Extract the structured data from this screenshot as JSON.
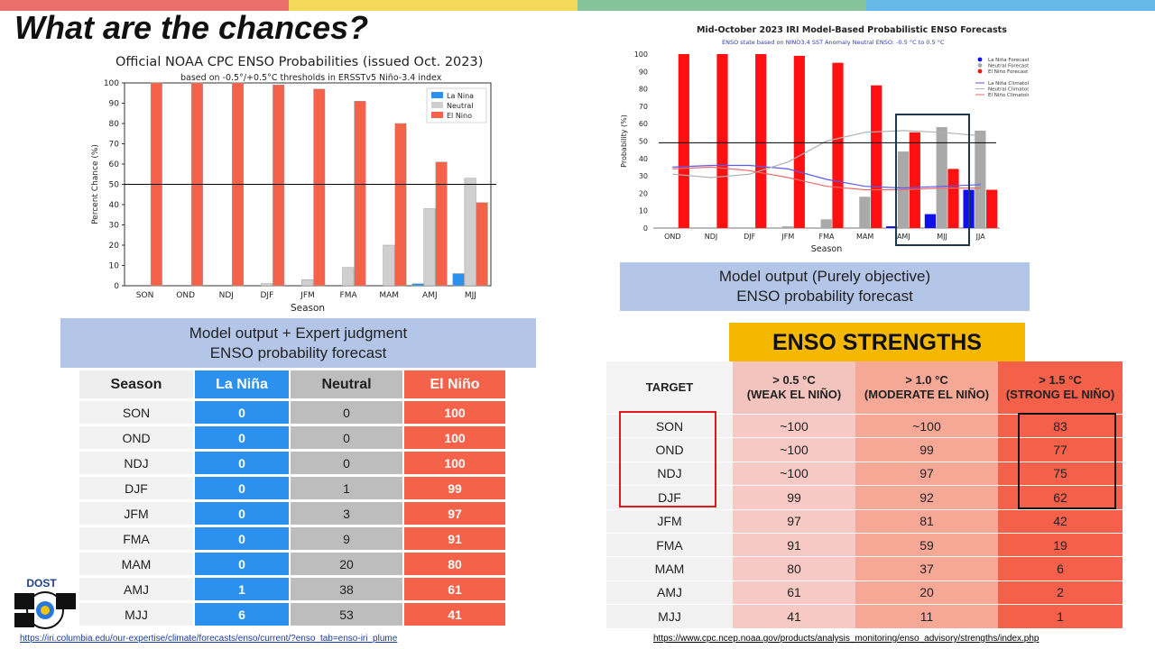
{
  "slide": {
    "title": "What are the chances?",
    "strip_colors": [
      "#ea6f6a",
      "#f4d85a",
      "#86c29b",
      "#66b8e8"
    ]
  },
  "cpc_chart": {
    "title": "Official NOAA CPC ENSO Probabilities (issued Oct. 2023)",
    "subtitle": "based on -0.5°/+0.5°C thresholds in ERSSTv5 Niño-3.4 index",
    "box_caption": [
      "Model output + Expert judgment",
      "ENSO probability forecast"
    ]
  },
  "iri_chart": {
    "title": "Mid-October 2023 IRI Model-Based Probabilistic ENSO Forecasts",
    "subtitle": "ENSO state based on NINO3.4 SST Anomaly Neutral ENSO: -0.5 °C to 0.5 °C",
    "legend": [
      "La Niña Forecast Probability",
      "Neutral Forecast Probability",
      "El Niño Forecast Probability",
      "",
      "La Niña Climatology",
      "Neutral Climatology",
      "El Niño Climatology"
    ],
    "box_caption": [
      "Model output (Purely objective)",
      "ENSO probability forecast"
    ]
  },
  "chart_data": [
    {
      "type": "bar",
      "title": "Official NOAA CPC ENSO Probabilities (issued Oct. 2023)",
      "subtitle": "based on -0.5°/+0.5°C thresholds in ERSSTv5 Niño-3.4 index",
      "xlabel": "Season",
      "ylabel": "Percent Chance (%)",
      "ylim": [
        0,
        100
      ],
      "yticks": [
        0,
        10,
        20,
        30,
        40,
        50,
        60,
        70,
        80,
        90,
        100
      ],
      "grid": false,
      "reference_line": 50,
      "legend_position": "top-right",
      "categories": [
        "SON",
        "OND",
        "NDJ",
        "DJF",
        "JFM",
        "FMA",
        "MAM",
        "AMJ",
        "MJJ"
      ],
      "series": [
        {
          "name": "La Nina",
          "color": "#2b90ee",
          "values": [
            0,
            0,
            0,
            0,
            0,
            0,
            0,
            1,
            6
          ]
        },
        {
          "name": "Neutral",
          "color": "#cfcfcf",
          "values": [
            0,
            0,
            0,
            1,
            3,
            9,
            20,
            38,
            53
          ]
        },
        {
          "name": "El Nino",
          "color": "#f4624a",
          "values": [
            100,
            100,
            100,
            99,
            97,
            91,
            80,
            61,
            41
          ]
        }
      ]
    },
    {
      "type": "bar",
      "title": "Mid-October 2023 IRI Model-Based Probabilistic ENSO Forecasts",
      "subtitle": "ENSO state based on NINO3.4 SST Anomaly Neutral ENSO: -0.5 °C to 0.5 °C",
      "xlabel": "Season",
      "ylabel": "Probability (%)",
      "ylim": [
        0,
        100
      ],
      "yticks": [
        0,
        10,
        20,
        30,
        40,
        50,
        60,
        70,
        80,
        90,
        100
      ],
      "grid": false,
      "reference_line": 49,
      "legend_position": "top-right",
      "categories": [
        "OND",
        "NDJ",
        "DJF",
        "JFM",
        "FMA",
        "MAM",
        "AMJ",
        "MJJ",
        "JJA"
      ],
      "series": [
        {
          "name": "La Niña Forecast Probability",
          "color": "#1010ee",
          "values": [
            0,
            0,
            0,
            0,
            0,
            0,
            1,
            8,
            22
          ]
        },
        {
          "name": "Neutral Forecast Probability",
          "color": "#a9a9a9",
          "values": [
            0,
            0,
            0,
            1,
            5,
            18,
            44,
            58,
            56
          ]
        },
        {
          "name": "El Niño Forecast Probability",
          "color": "#ff1111",
          "values": [
            100,
            100,
            100,
            99,
            95,
            82,
            55,
            34,
            22
          ]
        }
      ],
      "lines": [
        {
          "name": "La Niña Climatology",
          "color": "#5a5aee",
          "values": [
            35,
            36,
            36,
            34,
            28,
            24,
            23,
            24,
            25
          ]
        },
        {
          "name": "Neutral Climatology",
          "color": "#b0b0b0",
          "values": [
            31,
            29,
            31,
            38,
            50,
            55,
            56,
            55,
            53
          ]
        },
        {
          "name": "El Niño Climatology",
          "color": "#ee6a6a",
          "values": [
            34,
            35,
            33,
            29,
            24,
            22,
            22,
            23,
            23
          ]
        }
      ]
    }
  ],
  "prob_table": {
    "headers": [
      "Season",
      "La Niña",
      "Neutral",
      "El Niño"
    ],
    "rows": [
      [
        "SON",
        "0",
        "0",
        "100"
      ],
      [
        "OND",
        "0",
        "0",
        "100"
      ],
      [
        "NDJ",
        "0",
        "0",
        "100"
      ],
      [
        "DJF",
        "0",
        "1",
        "99"
      ],
      [
        "JFM",
        "0",
        "3",
        "97"
      ],
      [
        "FMA",
        "0",
        "9",
        "91"
      ],
      [
        "MAM",
        "0",
        "20",
        "80"
      ],
      [
        "AMJ",
        "1",
        "38",
        "61"
      ],
      [
        "MJJ",
        "6",
        "53",
        "41"
      ]
    ]
  },
  "strengths": {
    "banner": "ENSO STRENGTHS",
    "headers": [
      {
        "line1": "TARGET",
        "line2": ""
      },
      {
        "line1": "> 0.5 °C",
        "line2": "(WEAK EL NIÑO)"
      },
      {
        "line1": "> 1.0 °C",
        "line2": "(MODERATE EL NIÑO)"
      },
      {
        "line1": "> 1.5 °C",
        "line2": "(STRONG EL NIÑO)"
      }
    ],
    "rows": [
      [
        "SON",
        "~100",
        "~100",
        "83"
      ],
      [
        "OND",
        "~100",
        "99",
        "77"
      ],
      [
        "NDJ",
        "~100",
        "97",
        "75"
      ],
      [
        "DJF",
        "99",
        "92",
        "62"
      ],
      [
        "JFM",
        "97",
        "81",
        "42"
      ],
      [
        "FMA",
        "91",
        "59",
        "19"
      ],
      [
        "MAM",
        "80",
        "37",
        "6"
      ],
      [
        "AMJ",
        "61",
        "20",
        "2"
      ],
      [
        "MJJ",
        "41",
        "11",
        "1"
      ]
    ]
  },
  "logo": {
    "text": "DOST"
  },
  "sources": {
    "left": "https://iri.columbia.edu/our-expertise/climate/forecasts/enso/current/?enso_tab=enso-iri_plume",
    "right": "https://www.cpc.ncep.noaa.gov/products/analysis_monitoring/enso_advisory/strengths/index.php"
  }
}
